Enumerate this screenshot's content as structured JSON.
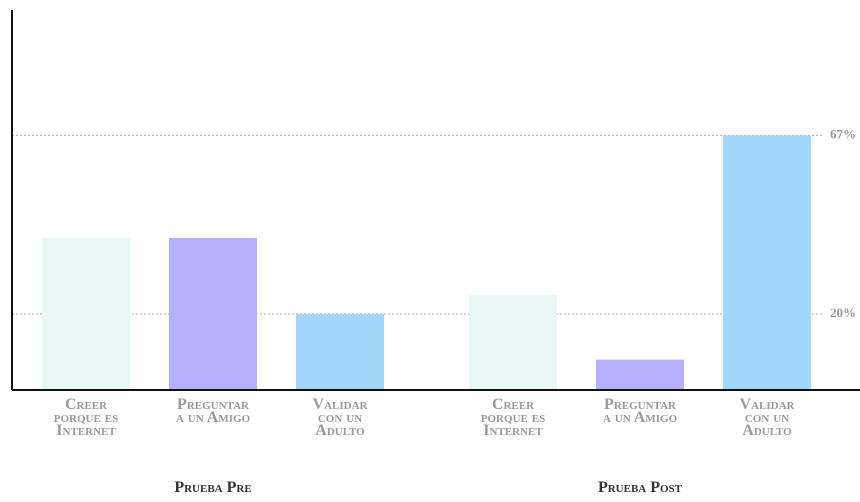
{
  "chart_data": {
    "type": "bar",
    "categories": [
      "Prueba Pre",
      "Prueba Post"
    ],
    "series": [
      {
        "name": "Creer porque es Internet",
        "color": "#e9f6f6",
        "values": [
          40,
          25
        ]
      },
      {
        "name": "Preguntar a un Amigo",
        "color": "#b5b0fb",
        "values": [
          40,
          8
        ]
      },
      {
        "name": "Validar con un Adulto",
        "color": "#a3d6fb",
        "values": [
          20,
          67
        ]
      }
    ],
    "ylim": [
      0,
      100
    ],
    "yticks": [
      {
        "value": 20,
        "label": "20%"
      },
      {
        "value": 67,
        "label": "67%"
      }
    ],
    "grid": true
  }
}
